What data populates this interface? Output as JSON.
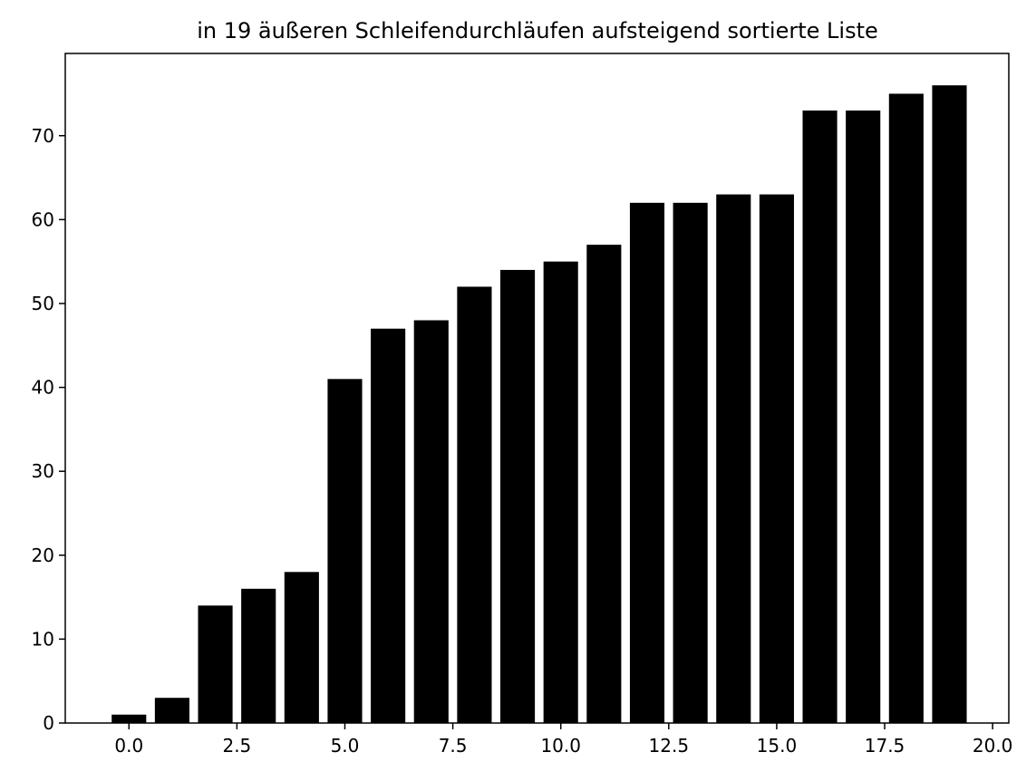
{
  "chart_data": {
    "type": "bar",
    "title": "in 19 äußeren Schleifendurchläufen aufsteigend sortierte Liste",
    "xlabel": "",
    "ylabel": "",
    "x": [
      0,
      1,
      2,
      3,
      4,
      5,
      6,
      7,
      8,
      9,
      10,
      11,
      12,
      13,
      14,
      15,
      16,
      17,
      18,
      19
    ],
    "values": [
      1,
      3,
      14,
      16,
      18,
      41,
      47,
      48,
      52,
      54,
      55,
      57,
      62,
      62,
      63,
      63,
      73,
      73,
      75,
      76
    ],
    "xlim": [
      -1.475,
      20.375
    ],
    "ylim": [
      0,
      79.8
    ],
    "xticks": [
      "0.0",
      "2.5",
      "5.0",
      "7.5",
      "10.0",
      "12.5",
      "15.0",
      "17.5",
      "20.0"
    ],
    "yticks": [
      "0",
      "10",
      "20",
      "30",
      "40",
      "50",
      "60",
      "70"
    ],
    "bar_color": "#000000",
    "grid": false
  }
}
